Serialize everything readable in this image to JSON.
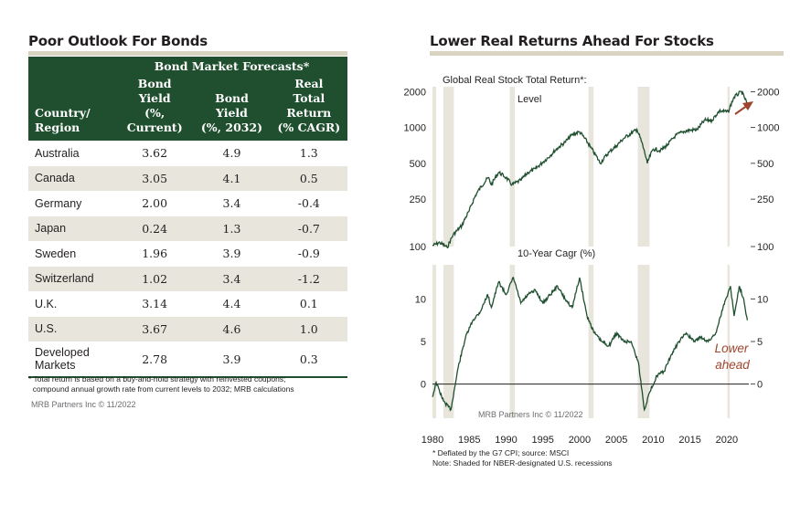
{
  "left_panel": {
    "title": "Poor Outlook For Bonds",
    "table_superheader": "Bond Market Forecasts*",
    "columns": [
      [
        "Country/",
        "Region"
      ],
      [
        "Bond",
        "Yield",
        "(%, Current)"
      ],
      [
        "Bond",
        "Yield",
        "(%, 2032)"
      ],
      [
        "Real",
        "Total Return",
        "(% CAGR)"
      ]
    ],
    "rows": [
      [
        "Australia",
        "3.62",
        "4.9",
        "1.3"
      ],
      [
        "Canada",
        "3.05",
        "4.1",
        "0.5"
      ],
      [
        "Germany",
        "2.00",
        "3.4",
        "-0.4"
      ],
      [
        "Japan",
        "0.24",
        "1.3",
        "-0.7"
      ],
      [
        "Sweden",
        "1.96",
        "3.9",
        "-0.9"
      ],
      [
        "Switzerland",
        "1.02",
        "3.4",
        "-1.2"
      ],
      [
        "U.K.",
        "3.14",
        "4.4",
        "0.1"
      ],
      [
        "U.S.",
        "3.67",
        "4.6",
        "1.0"
      ],
      [
        "Developed\nMarkets",
        "2.78",
        "3.9",
        "0.3"
      ]
    ],
    "footnote_line1": "* Total return is based on a buy-and-hold strategy with reinvested coupons;",
    "footnote_line2": "  compound annual growth rate from current levels to 2032; MRB calculations",
    "credit": "MRB Partners Inc © 11/2022"
  },
  "right_panel": {
    "title": "Lower Real Returns Ahead For Stocks",
    "top_chart_label": "Global Real Stock Total Return*:",
    "top_chart_sublabel": "Level",
    "bottom_chart_label": "10-Year Cagr (%)",
    "annotation_line1": "Lower",
    "annotation_line2": "ahead",
    "credit": "MRB Partners Inc © 11/2022",
    "footnote_line1": "* Deflated by the G7 CPI; source: MSCI",
    "footnote_line2": "Note: Shaded for NBER-designated U.S. recessions"
  },
  "colors": {
    "table_header": "#1f4f2f",
    "row_shade": "#e8e5dc",
    "line": "#1f4f2f",
    "recession": "#e8e5dc",
    "annotation": "#a0452e"
  },
  "chart_data": [
    {
      "type": "line",
      "title": "Global Real Stock Total Return*:",
      "subtitle": "Level",
      "scale": "log",
      "yticks": [
        100,
        250,
        500,
        1000,
        2000
      ],
      "ylim": [
        100,
        2200
      ],
      "xlim": [
        1980,
        2023
      ],
      "xticks": [
        1980,
        1985,
        1990,
        1995,
        2000,
        2005,
        2010,
        2015,
        2020
      ],
      "recessions": [
        [
          1980.0,
          1980.5
        ],
        [
          1981.5,
          1982.9
        ],
        [
          1990.5,
          1991.2
        ],
        [
          2001.2,
          2001.9
        ],
        [
          2007.9,
          2009.5
        ],
        [
          2020.1,
          2020.4
        ]
      ],
      "series": [
        {
          "x": [
            1980,
            1981,
            1982,
            1982.8,
            1984,
            1985,
            1986,
            1987.6,
            1988.0,
            1989.0,
            1990.0,
            1990.8,
            1992,
            1993,
            1994,
            1995,
            1996,
            1997,
            1998,
            1999,
            2000.0,
            2001.5,
            2002.8,
            2004,
            2005,
            2006,
            2007.8,
            2009.2,
            2010,
            2011,
            2012,
            2013,
            2014,
            2015,
            2016,
            2017,
            2018,
            2019,
            2020.2,
            2021,
            2022.0,
            2022.8
          ],
          "y": [
            102,
            108,
            98,
            125,
            150,
            200,
            280,
            380,
            330,
            420,
            380,
            330,
            360,
            420,
            450,
            510,
            580,
            670,
            750,
            870,
            920,
            680,
            500,
            620,
            700,
            810,
            960,
            500,
            660,
            640,
            720,
            850,
            920,
            950,
            960,
            1150,
            1150,
            1380,
            1350,
            1800,
            2000,
            1570
          ]
        }
      ]
    },
    {
      "type": "line",
      "title": "10-Year Cagr (%)",
      "yticks": [
        0,
        5,
        10
      ],
      "ylim": [
        -4,
        14
      ],
      "xlim": [
        1980,
        2023
      ],
      "xticks": [
        1980,
        1985,
        1990,
        1995,
        2000,
        2005,
        2010,
        2015,
        2020
      ],
      "recessions": [
        [
          1980.0,
          1980.5
        ],
        [
          1981.5,
          1982.9
        ],
        [
          1990.5,
          1991.2
        ],
        [
          2001.2,
          2001.9
        ],
        [
          2007.9,
          2009.5
        ],
        [
          2020.1,
          2020.4
        ]
      ],
      "series": [
        {
          "x": [
            1980,
            1980.5,
            1981.5,
            1982.5,
            1983.5,
            1984.5,
            1985.5,
            1986.5,
            1987.5,
            1988,
            1989,
            1990,
            1991,
            1992,
            1993,
            1994,
            1995,
            1996,
            1997,
            1998,
            1999,
            2000,
            2001,
            2002,
            2003,
            2004,
            2005,
            2006,
            2007,
            2008,
            2008.8,
            2009.5,
            2010.5,
            2011.5,
            2012.5,
            2013.5,
            2014.5,
            2015.5,
            2016.5,
            2017.5,
            2018.5,
            2019.5,
            2020.5,
            2021,
            2021.7,
            2022.3,
            2022.8
          ],
          "y": [
            -1.5,
            0.2,
            -2.0,
            -3.0,
            2.0,
            5.5,
            7.5,
            8.5,
            10.5,
            9.0,
            12.0,
            10.5,
            12.5,
            9.5,
            10.5,
            11.0,
            9.5,
            10.5,
            11.5,
            10.0,
            9.0,
            12.5,
            8.0,
            6.0,
            5.0,
            4.5,
            6.0,
            5.0,
            5.0,
            2.5,
            -3.0,
            -1.0,
            1.0,
            1.5,
            3.5,
            5.0,
            6.0,
            5.0,
            5.5,
            5.0,
            6.0,
            9.0,
            11.5,
            8.0,
            11.5,
            10.0,
            7.5
          ]
        }
      ]
    }
  ]
}
